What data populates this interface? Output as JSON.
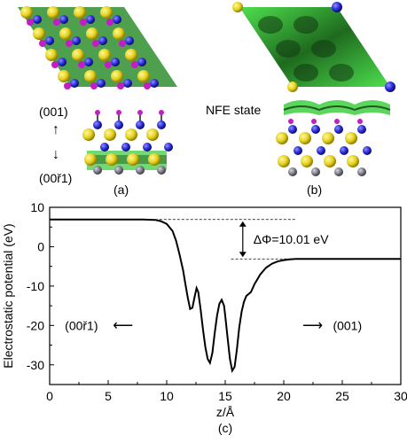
{
  "figure": {
    "panel_a_label": "(a)",
    "panel_b_label": "(b)",
    "panel_c_label": "(c)",
    "dir_up": "(001)",
    "dir_down": "(00ř1)",
    "nfe_label": "NFE state"
  },
  "colors": {
    "sulfur": "#e6d21e",
    "nitrogen": "#2a2ad8",
    "hydrogen": "#c21fc2",
    "metal": "#7a7a88",
    "density": "#3fcf3f",
    "density_dark": "#1f5a1f"
  },
  "chart_data": {
    "type": "line",
    "xlabel": "z/Å",
    "ylabel": "Electrostatic potential (eV)",
    "xlim": [
      0,
      30
    ],
    "ylim": [
      -35,
      10
    ],
    "x_ticks": [
      "0",
      "5",
      "10",
      "15",
      "20",
      "25",
      "30"
    ],
    "y_ticks": [
      "10",
      "0",
      "-10",
      "-20",
      "-30"
    ],
    "annotation": "ΔΦ=10.01 eV",
    "left_side_label": "(00ř1)",
    "right_side_label": "(001)",
    "vacuum_left_level": 6.9,
    "vacuum_right_level": -3.1,
    "x": [
      0,
      2,
      4,
      6,
      8,
      9,
      9.5,
      10,
      10.5,
      10.8,
      11.1,
      11.4,
      11.6,
      11.8,
      12.0,
      12.2,
      12.4,
      12.55,
      12.7,
      12.9,
      13.1,
      13.3,
      13.5,
      13.7,
      13.9,
      14.1,
      14.3,
      14.5,
      14.7,
      14.9,
      15.0,
      15.2,
      15.4,
      15.6,
      15.8,
      16.0,
      16.2,
      16.4,
      16.6,
      16.8,
      17.0,
      17.2,
      17.5,
      18.0,
      18.5,
      19.0,
      19.5,
      20.0,
      20.5,
      21,
      22,
      23,
      25,
      27,
      30
    ],
    "y": [
      6.9,
      6.9,
      6.9,
      6.9,
      6.9,
      6.8,
      6.5,
      5.8,
      4.0,
      1.5,
      -2.0,
      -6.0,
      -9.5,
      -13.0,
      -15.8,
      -15.5,
      -12.5,
      -10.5,
      -11.5,
      -16.0,
      -21.0,
      -25.5,
      -28.5,
      -29.5,
      -27.0,
      -22.0,
      -17.5,
      -14.5,
      -13.5,
      -15.0,
      -17.5,
      -23.0,
      -28.5,
      -31.5,
      -30.5,
      -26.0,
      -20.5,
      -16.5,
      -14.0,
      -12.5,
      -12.0,
      -11.5,
      -9.5,
      -7.0,
      -5.3,
      -4.3,
      -3.7,
      -3.4,
      -3.2,
      -3.1,
      -3.1,
      -3.1,
      -3.1,
      -3.1,
      -3.1
    ]
  }
}
